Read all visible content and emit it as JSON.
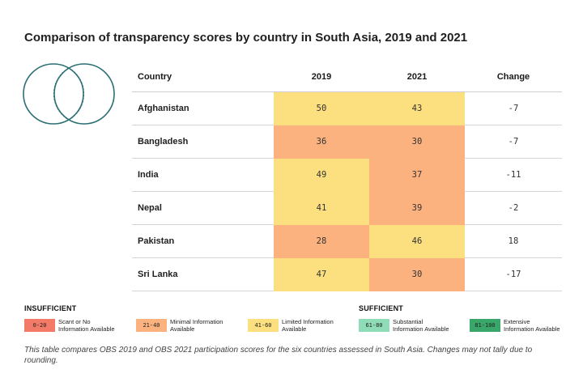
{
  "chart_data": {
    "type": "table",
    "title": "Comparison of transparency scores by country in South Asia, 2019 and 2021",
    "columns": [
      "Country",
      "2019",
      "2021",
      "Change"
    ],
    "rows": [
      {
        "country": "Afghanistan",
        "y2019": 50,
        "y2021": 43,
        "change": "-7"
      },
      {
        "country": "Bangladesh",
        "y2019": 36,
        "y2021": 30,
        "change": "-7"
      },
      {
        "country": "India",
        "y2019": 49,
        "y2021": 37,
        "change": "-11"
      },
      {
        "country": "Nepal",
        "y2019": 41,
        "y2021": 39,
        "change": "-2"
      },
      {
        "country": "Pakistan",
        "y2019": 28,
        "y2021": 46,
        "change": "18"
      },
      {
        "country": "Sri Lanka",
        "y2019": 47,
        "y2021": 30,
        "change": "-17"
      }
    ],
    "legend": {
      "insufficient_label": "INSUFFICIENT",
      "sufficient_label": "SUFFICIENT",
      "bands": [
        {
          "range": "0-20",
          "min": 0,
          "max": 20,
          "label_line1": "Scant or No",
          "label_line2": "Information Available",
          "color": "#f27a66"
        },
        {
          "range": "21-40",
          "min": 21,
          "max": 40,
          "label_line1": "Minimal Information",
          "label_line2": "Available",
          "color": "#fbb27e"
        },
        {
          "range": "41-60",
          "min": 41,
          "max": 60,
          "label_line1": "Limited Information",
          "label_line2": "Available",
          "color": "#fcdf7e"
        },
        {
          "range": "61-80",
          "min": 61,
          "max": 80,
          "label_line1": "Substantial",
          "label_line2": "Information Available",
          "color": "#8fdcb8"
        },
        {
          "range": "81-100",
          "min": 81,
          "max": 100,
          "label_line1": "Extensive",
          "label_line2": "Information Available",
          "color": "#3aa76a"
        }
      ]
    }
  },
  "caption": "This table compares OBS 2019 and OBS 2021 participation scores for the six countries assessed in South Asia. Changes may not tally due to rounding.",
  "colors": {
    "logo_stroke": "#2b6e74"
  }
}
